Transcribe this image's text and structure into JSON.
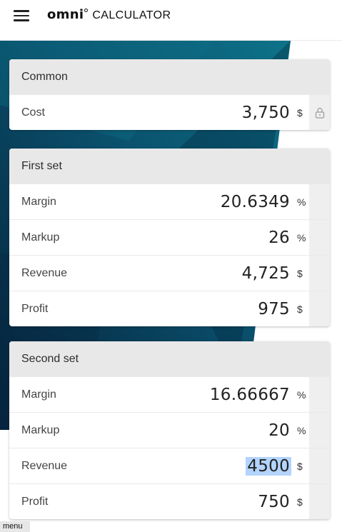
{
  "header": {
    "logo_text": "omni",
    "logo_suffix": "CALCULATOR"
  },
  "cards": [
    {
      "title": "Common",
      "rows": [
        {
          "label": "Cost",
          "value": "3,750",
          "unit": "$"
        }
      ]
    },
    {
      "title": "First set",
      "rows": [
        {
          "label": "Margin",
          "value": "20.6349",
          "unit": "%"
        },
        {
          "label": "Markup",
          "value": "26",
          "unit": "%"
        },
        {
          "label": "Revenue",
          "value": "4,725",
          "unit": "$"
        },
        {
          "label": "Profit",
          "value": "975",
          "unit": "$"
        }
      ]
    },
    {
      "title": "Second set",
      "rows": [
        {
          "label": "Margin",
          "value": "16.66667",
          "unit": "%"
        },
        {
          "label": "Markup",
          "value": "20",
          "unit": "%"
        },
        {
          "label": "Revenue",
          "value": "4500",
          "unit": "$"
        },
        {
          "label": "Profit",
          "value": "750",
          "unit": "$"
        }
      ]
    }
  ],
  "footer": {
    "menu_label": "menu"
  },
  "colors": {
    "accent_dark": "#06304a",
    "accent_teal": "#0d6f86",
    "selection": "#b3d4fc"
  },
  "icons": {
    "menu": "hamburger-icon",
    "lock": "lock-icon"
  }
}
